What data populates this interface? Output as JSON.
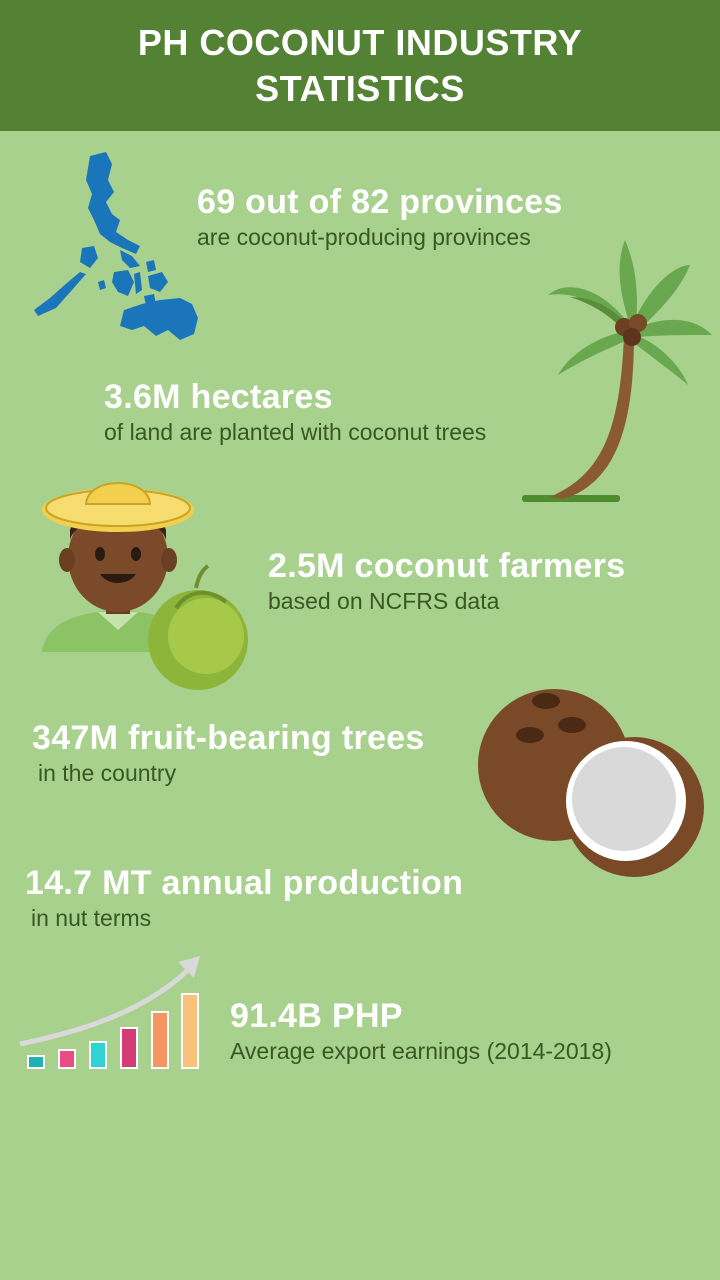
{
  "header": {
    "title": "PH COCONUT INDUSTRY STATISTICS"
  },
  "stats": [
    {
      "headline": "69 out of 82 provinces",
      "sub": "are coconut-producing provinces",
      "icon": "philippines-map-icon"
    },
    {
      "headline": "3.6M hectares",
      "sub": "of land are planted with coconut trees",
      "icon": "coconut-tree-icon"
    },
    {
      "headline": "2.5M coconut farmers",
      "sub": "based on NCFRS data",
      "icon": "farmer-icon"
    },
    {
      "headline": "347M fruit-bearing trees",
      "sub": "in the country",
      "icon": "coconut-half-icon"
    },
    {
      "headline": "14.7 MT annual production",
      "sub": "in nut terms",
      "icon": ""
    },
    {
      "headline": "91.4B PHP",
      "sub": "Average export earnings (2014-2018)",
      "icon": "growth-chart-icon"
    }
  ],
  "colors": {
    "background": "#a9d18e",
    "header": "#548235",
    "headline": "#ffffff",
    "subtext": "#385723",
    "map_blue": "#1b75bb"
  }
}
